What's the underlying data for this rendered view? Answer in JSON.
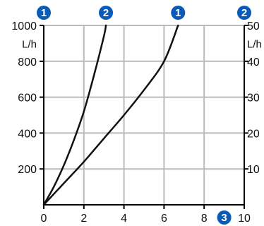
{
  "chart_data": {
    "type": "line",
    "x_ticks": [
      "0",
      "2",
      "4",
      "6",
      "8",
      "10"
    ],
    "xlim": [
      0,
      10
    ],
    "y_left": {
      "ticks": [
        "200",
        "400",
        "600",
        "800",
        "1000"
      ],
      "tick_values": [
        200,
        400,
        600,
        800,
        1000
      ],
      "unit": "L/h",
      "ylim": [
        0,
        1000
      ],
      "marker": "1"
    },
    "y_right": {
      "ticks": [
        "10",
        "20",
        "30",
        "40",
        "50"
      ],
      "tick_values": [
        10,
        20,
        30,
        40,
        50
      ],
      "unit": "L/h",
      "ylim": [
        0,
        50
      ],
      "marker": "2"
    },
    "x_marker": "3",
    "grid": true,
    "series": [
      {
        "marker": "1",
        "axis": "left",
        "x": [
          0,
          1,
          2,
          3,
          4,
          5,
          6,
          6.7
        ],
        "y": [
          0,
          120,
          240,
          370,
          500,
          640,
          800,
          1000
        ]
      },
      {
        "marker": "2",
        "axis": "right",
        "x": [
          0,
          0.5,
          1,
          1.5,
          2,
          2.5,
          3,
          3.1
        ],
        "y": [
          0,
          5,
          11,
          18,
          26,
          36,
          47,
          50
        ]
      }
    ]
  },
  "colors": {
    "badge": "#0a5bb8",
    "grid": "#bbbbbb",
    "axis": "#000000",
    "curve": "#111111"
  }
}
